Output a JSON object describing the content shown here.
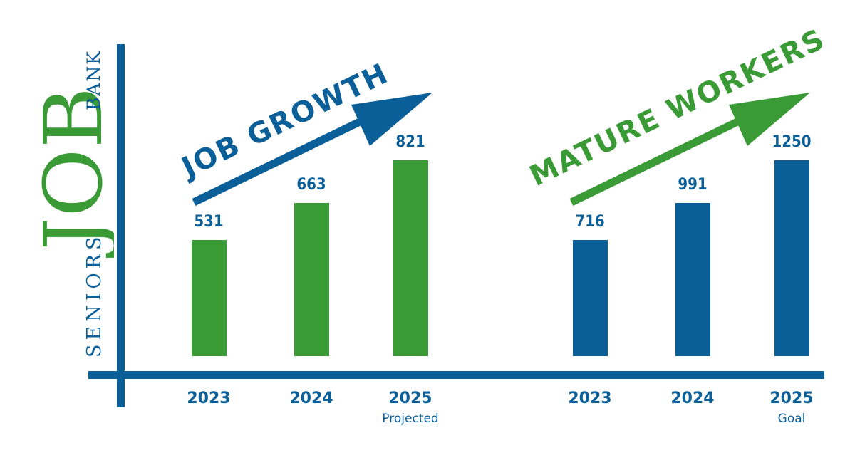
{
  "logo": {
    "seniors": "SENIORS",
    "job": "JOB",
    "bank": "BANK"
  },
  "colors": {
    "green": "#3a9a35",
    "blue": "#0b5f98"
  },
  "chart_data": [
    {
      "type": "bar",
      "title": "JOB GROWTH",
      "categories": [
        "2023",
        "2024",
        "2025"
      ],
      "category_notes": [
        "",
        "",
        "Projected"
      ],
      "values": [
        531,
        663,
        821
      ],
      "color": "green"
    },
    {
      "type": "bar",
      "title": "MATURE WORKERS",
      "categories": [
        "2023",
        "2024",
        "2025"
      ],
      "category_notes": [
        "",
        "",
        "Goal"
      ],
      "values": [
        716,
        991,
        1250
      ],
      "color": "blue"
    }
  ]
}
